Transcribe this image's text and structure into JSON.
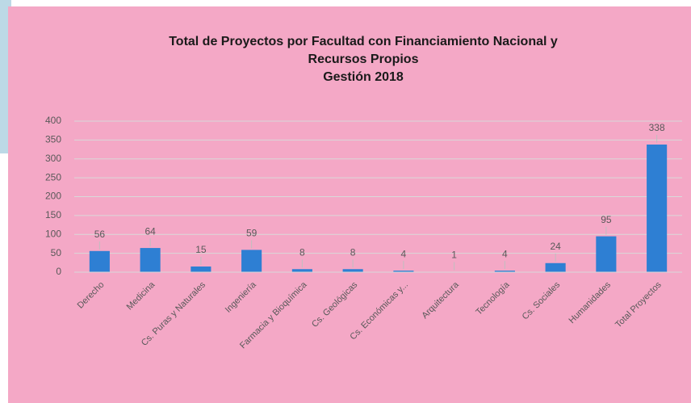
{
  "chart_data": {
    "type": "bar",
    "title": [
      "Total de Proyectos por Facultad con Financiamiento Nacional y",
      "Recursos Propios",
      "Gestión 2018"
    ],
    "categories": [
      "Derecho",
      "Medicina",
      "Cs. Puras y Naturales",
      "Ingeniería",
      "Farmacia y Bioquímica",
      "Cs. Geológicas",
      "Cs. Económicas y...",
      "Arquitectura",
      "Tecnología",
      "Cs. Sociales",
      "Humanidades",
      "Total Proyectos"
    ],
    "values": [
      56,
      64,
      15,
      59,
      8,
      8,
      4,
      1,
      4,
      24,
      95,
      338
    ],
    "color": "#2e7fd3",
    "ylim": [
      0,
      400
    ],
    "yticks": [
      0,
      50,
      100,
      150,
      200,
      250,
      300,
      350,
      400
    ],
    "grid": true
  }
}
